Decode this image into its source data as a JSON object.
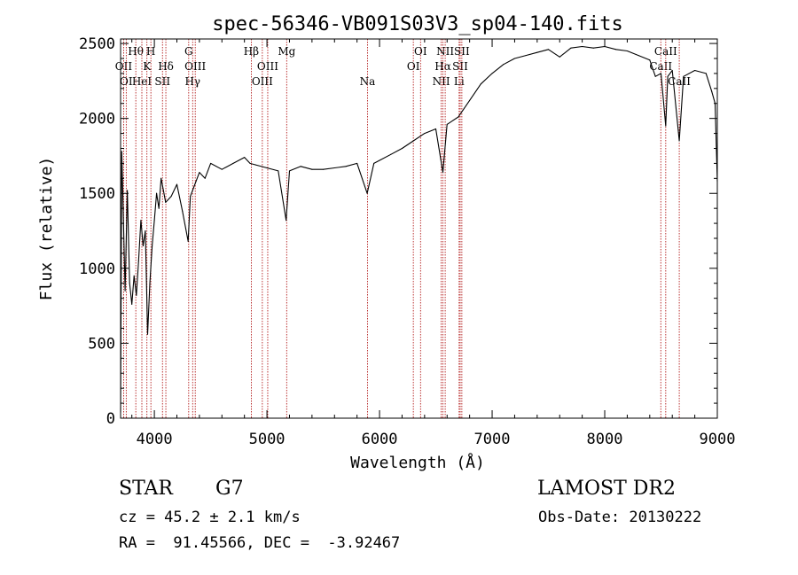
{
  "chart_data": {
    "type": "line",
    "title": "spec-56346-VB091S03V3_sp04-140.fits",
    "xlabel": "Wavelength (Å)",
    "ylabel": "Flux (relative)",
    "xlim": [
      3700,
      9000
    ],
    "ylim": [
      0,
      2530
    ],
    "x_ticks": [
      4000,
      5000,
      6000,
      7000,
      8000,
      9000
    ],
    "y_ticks": [
      0,
      500,
      1000,
      1500,
      2000,
      2500
    ],
    "grid": false,
    "series": [
      {
        "points": [
          [
            3700,
            40
          ],
          [
            3710,
            1780
          ],
          [
            3720,
            1500
          ],
          [
            3740,
            850
          ],
          [
            3760,
            1520
          ],
          [
            3780,
            900
          ],
          [
            3800,
            760
          ],
          [
            3820,
            950
          ],
          [
            3840,
            820
          ],
          [
            3860,
            1050
          ],
          [
            3880,
            1320
          ],
          [
            3900,
            1150
          ],
          [
            3920,
            1250
          ],
          [
            3940,
            560
          ],
          [
            3960,
            900
          ],
          [
            3980,
            1150
          ],
          [
            4000,
            1320
          ],
          [
            4020,
            1500
          ],
          [
            4040,
            1400
          ],
          [
            4060,
            1600
          ],
          [
            4080,
            1520
          ],
          [
            4100,
            1440
          ],
          [
            4150,
            1480
          ],
          [
            4200,
            1560
          ],
          [
            4250,
            1380
          ],
          [
            4300,
            1180
          ],
          [
            4320,
            1480
          ],
          [
            4350,
            1540
          ],
          [
            4400,
            1640
          ],
          [
            4450,
            1600
          ],
          [
            4500,
            1700
          ],
          [
            4600,
            1660
          ],
          [
            4700,
            1700
          ],
          [
            4800,
            1740
          ],
          [
            4850,
            1700
          ],
          [
            4900,
            1690
          ],
          [
            5000,
            1670
          ],
          [
            5100,
            1650
          ],
          [
            5170,
            1320
          ],
          [
            5200,
            1650
          ],
          [
            5300,
            1680
          ],
          [
            5400,
            1660
          ],
          [
            5500,
            1660
          ],
          [
            5600,
            1670
          ],
          [
            5700,
            1680
          ],
          [
            5800,
            1700
          ],
          [
            5890,
            1500
          ],
          [
            5950,
            1700
          ],
          [
            6000,
            1720
          ],
          [
            6100,
            1760
          ],
          [
            6200,
            1800
          ],
          [
            6300,
            1850
          ],
          [
            6400,
            1900
          ],
          [
            6500,
            1930
          ],
          [
            6563,
            1640
          ],
          [
            6600,
            1960
          ],
          [
            6700,
            2010
          ],
          [
            6800,
            2120
          ],
          [
            6900,
            2230
          ],
          [
            7000,
            2300
          ],
          [
            7100,
            2360
          ],
          [
            7200,
            2400
          ],
          [
            7300,
            2420
          ],
          [
            7400,
            2440
          ],
          [
            7500,
            2460
          ],
          [
            7600,
            2410
          ],
          [
            7700,
            2470
          ],
          [
            7800,
            2480
          ],
          [
            7900,
            2470
          ],
          [
            8000,
            2480
          ],
          [
            8100,
            2460
          ],
          [
            8200,
            2450
          ],
          [
            8300,
            2420
          ],
          [
            8400,
            2390
          ],
          [
            8450,
            2280
          ],
          [
            8500,
            2300
          ],
          [
            8542,
            1950
          ],
          [
            8560,
            2280
          ],
          [
            8600,
            2320
          ],
          [
            8662,
            1850
          ],
          [
            8700,
            2280
          ],
          [
            8800,
            2320
          ],
          [
            8900,
            2300
          ],
          [
            8950,
            2180
          ],
          [
            8980,
            2100
          ],
          [
            9000,
            1580
          ]
        ]
      }
    ],
    "spectral_lines": [
      {
        "wave": 3727,
        "labels": [
          "OII"
        ],
        "row": 1
      },
      {
        "wave": 3750,
        "labels": [
          "OI"
        ],
        "row": 2
      },
      {
        "wave": 3835,
        "labels": [
          "Hθ"
        ],
        "row": 0
      },
      {
        "wave": 3889,
        "labels": [
          "HeI"
        ],
        "row": 2
      },
      {
        "wave": 3934,
        "labels": [
          "K"
        ],
        "row": 1
      },
      {
        "wave": 3969,
        "labels": [
          "H"
        ],
        "row": 0
      },
      {
        "wave": 4072,
        "labels": [
          "SII"
        ],
        "row": 2
      },
      {
        "wave": 4102,
        "labels": [
          "Hδ"
        ],
        "row": 1
      },
      {
        "wave": 4305,
        "labels": [
          "G"
        ],
        "row": 0
      },
      {
        "wave": 4340,
        "labels": [
          "Hγ"
        ],
        "row": 2
      },
      {
        "wave": 4363,
        "labels": [
          "OIII"
        ],
        "row": 1
      },
      {
        "wave": 4861,
        "labels": [
          "Hβ"
        ],
        "row": 0
      },
      {
        "wave": 4959,
        "labels": [
          "OIII"
        ],
        "row": 2
      },
      {
        "wave": 5007,
        "labels": [
          "OIII"
        ],
        "row": 1
      },
      {
        "wave": 5175,
        "labels": [
          "Mg"
        ],
        "row": 0
      },
      {
        "wave": 5893,
        "labels": [
          "Na"
        ],
        "row": 2
      },
      {
        "wave": 6300,
        "labels": [
          "OI"
        ],
        "row": 1
      },
      {
        "wave": 6364,
        "labels": [
          "OI"
        ],
        "row": 0
      },
      {
        "wave": 6548,
        "labels": [
          "NII"
        ],
        "row": 2
      },
      {
        "wave": 6563,
        "labels": [
          "Hα"
        ],
        "row": 1
      },
      {
        "wave": 6583,
        "labels": [
          "NII"
        ],
        "row": 0
      },
      {
        "wave": 6707,
        "labels": [
          "Li"
        ],
        "row": 2
      },
      {
        "wave": 6716,
        "labels": [
          "SII"
        ],
        "row": 1
      },
      {
        "wave": 6731,
        "labels": [
          "SII"
        ],
        "row": 0
      },
      {
        "wave": 8498,
        "labels": [
          "CaII"
        ],
        "row": 1
      },
      {
        "wave": 8542,
        "labels": [
          "CaII"
        ],
        "row": 0
      },
      {
        "wave": 8662,
        "labels": [
          "CaII"
        ],
        "row": 2
      }
    ],
    "line_color": "#000000",
    "marker_color": "#aa0000"
  },
  "info": {
    "object_class": "STAR",
    "subclass": "G7",
    "survey": "LAMOST DR2",
    "redshift": "cz = 45.2 ± 2.1 km/s",
    "obs_date": "Obs-Date: 20130222",
    "coords": "RA =  91.45566, DEC =  -3.92467"
  }
}
